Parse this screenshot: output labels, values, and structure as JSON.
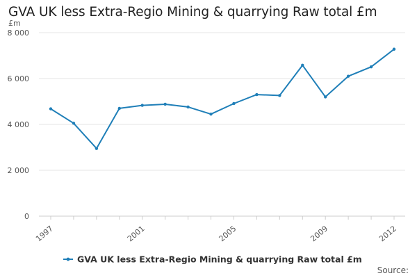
{
  "chart_data": {
    "type": "line",
    "title": "GVA UK less Extra-Regio Mining & quarrying Raw total £m",
    "ylabel": "£m",
    "xlabel": "",
    "x": [
      1997,
      1998,
      1999,
      2000,
      2001,
      2002,
      2003,
      2004,
      2005,
      2006,
      2007,
      2008,
      2009,
      2010,
      2011,
      2012
    ],
    "series": [
      {
        "name": "GVA UK less Extra-Regio Mining & quarrying Raw total £m",
        "values": [
          4680,
          4050,
          2950,
          4700,
          4830,
          4880,
          4760,
          4450,
          4910,
          5300,
          5260,
          6580,
          5200,
          6100,
          6510,
          7280
        ]
      }
    ],
    "xticks": [
      "1997",
      "2001",
      "2005",
      "2009",
      "2012"
    ],
    "yticks": [
      "0",
      "2 000",
      "4 000",
      "6 000",
      "8 000"
    ],
    "ylim": [
      0,
      8000
    ],
    "grid": true,
    "legend_position": "bottom"
  },
  "source_label": "Source:",
  "colors": {
    "series": "#1f7fb8",
    "grid": "#e6e6e6",
    "axis_text": "#555555"
  }
}
